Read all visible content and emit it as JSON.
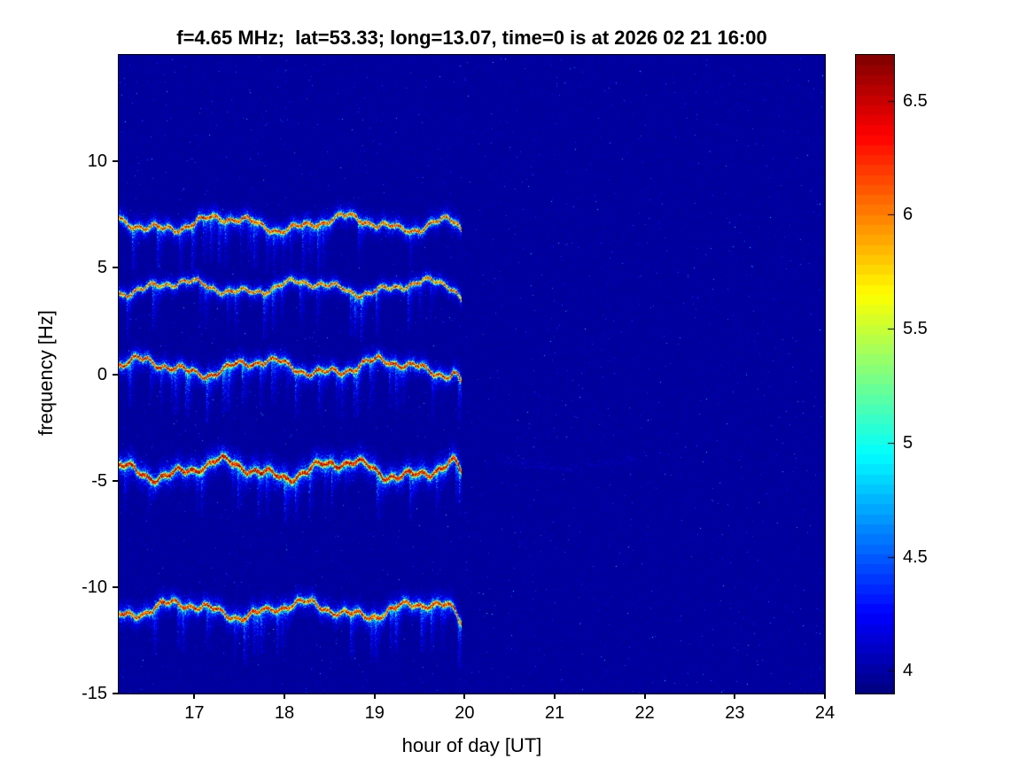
{
  "chart_data": {
    "type": "heatmap",
    "title": "f=4.65 MHz;  lat=53.33; long=13.07, time=0 is at 2026 02 21 16:00",
    "xlabel": "hour of day [UT]",
    "ylabel": "frequency [Hz]",
    "xlim": [
      16.16,
      24
    ],
    "ylim": [
      -15,
      15
    ],
    "xtick_values": [
      17,
      18,
      19,
      20,
      21,
      22,
      23,
      24
    ],
    "xticks": [
      "17",
      "18",
      "19",
      "20",
      "21",
      "22",
      "23",
      "24"
    ],
    "ytick_values": [
      10,
      5,
      0,
      -5,
      -10,
      -15
    ],
    "yticks": [
      "10",
      "5",
      "0",
      "-5",
      "-10",
      "-15"
    ],
    "grid": false,
    "colormap": "jet",
    "background_value": 4.0,
    "colorbar": {
      "min": 3.9,
      "max": 6.7,
      "ticks": [
        4,
        4.5,
        5,
        5.5,
        6,
        6.5
      ],
      "tick_labels": [
        "4",
        "4.5",
        "5",
        "5.5",
        "6",
        "6.5"
      ],
      "levels": 64,
      "position": "right"
    },
    "signal": {
      "t_start": 16.16,
      "t_end": 19.97,
      "description": "Five noisy horizontal Doppler echo traces that end just before 20:00 UT; remainder of the plot is near-background with sparse speckle",
      "traces": [
        {
          "name": "echo-trace-1",
          "center_hz": 7.1,
          "wobble_hz": 0.28,
          "peak_value": 6.4,
          "spread": 1.0
        },
        {
          "name": "echo-trace-2",
          "center_hz": 4.1,
          "wobble_hz": 0.25,
          "peak_value": 6.35,
          "spread": 0.85
        },
        {
          "name": "echo-trace-3",
          "center_hz": 0.35,
          "wobble_hz": 0.3,
          "peak_value": 6.55,
          "spread": 1.0
        },
        {
          "name": "echo-trace-4",
          "center_hz": -4.45,
          "wobble_hz": 0.35,
          "peak_value": 6.65,
          "spread": 1.3
        },
        {
          "name": "echo-trace-5",
          "center_hz": -11.05,
          "wobble_hz": 0.3,
          "peak_value": 6.5,
          "spread": 1.1
        }
      ]
    },
    "faint_arc": {
      "t_start": 20.35,
      "t_end": 21.9,
      "center_hz": -3.9,
      "dip_hz": 0.45,
      "value": 4.2
    }
  }
}
